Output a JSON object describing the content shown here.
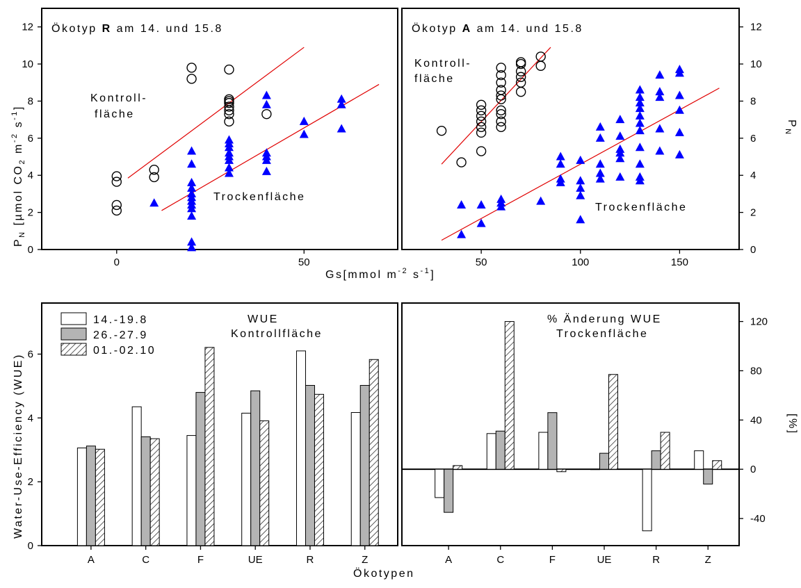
{
  "chart_data": [
    {
      "type": "scatter",
      "title": "Ökotyp R am 14. und 15.8",
      "title_prefix": "Ökotyp ",
      "title_bold": "R",
      "title_suffix": " am 14. und 15.8",
      "ylabel": "P",
      "ylabel_sub": "N",
      "ylabel_rest": " [µmol CO",
      "ylabel_sub2": "2",
      "ylabel_rest2": " m",
      "ylabel_sup1": "-2",
      "ylabel_rest3": " s",
      "ylabel_sup2": "-1",
      "ylabel_end": "]",
      "xlim": [
        -20,
        75
      ],
      "ylim": [
        0,
        13
      ],
      "xticks": [
        0,
        50
      ],
      "yticks": [
        0,
        2,
        4,
        6,
        8,
        10,
        12
      ],
      "annotations": [
        "Kontroll-",
        "fläche",
        "Trockenfläche"
      ],
      "series": [
        {
          "name": "Kontrollfläche",
          "marker": "circle",
          "points": [
            [
              0,
              2.1
            ],
            [
              0,
              2.4
            ],
            [
              0,
              3.65
            ],
            [
              0,
              3.95
            ],
            [
              10,
              3.9
            ],
            [
              10,
              4.3
            ],
            [
              20,
              9.2
            ],
            [
              20,
              9.8
            ],
            [
              30,
              6.9
            ],
            [
              30,
              7.3
            ],
            [
              30,
              7.5
            ],
            [
              30,
              7.7
            ],
            [
              30,
              7.9
            ],
            [
              30,
              8.0
            ],
            [
              30,
              8.1
            ],
            [
              30,
              9.7
            ],
            [
              40,
              7.3
            ]
          ],
          "fit": [
            [
              3,
              3.85
            ],
            [
              50,
              10.9
            ]
          ]
        },
        {
          "name": "Trockenfläche",
          "marker": "triangle",
          "points": [
            [
              10,
              2.5
            ],
            [
              20,
              0.1
            ],
            [
              20,
              0.4
            ],
            [
              20,
              1.8
            ],
            [
              20,
              2.2
            ],
            [
              20,
              2.4
            ],
            [
              20,
              2.6
            ],
            [
              20,
              2.8
            ],
            [
              20,
              3.0
            ],
            [
              20,
              3.3
            ],
            [
              20,
              3.6
            ],
            [
              20,
              4.6
            ],
            [
              20,
              5.3
            ],
            [
              30,
              4.1
            ],
            [
              30,
              4.4
            ],
            [
              30,
              4.8
            ],
            [
              30,
              5.0
            ],
            [
              30,
              5.2
            ],
            [
              30,
              5.5
            ],
            [
              30,
              5.7
            ],
            [
              30,
              5.9
            ],
            [
              40,
              4.2
            ],
            [
              40,
              4.8
            ],
            [
              40,
              5.0
            ],
            [
              40,
              5.2
            ],
            [
              40,
              7.8
            ],
            [
              40,
              8.3
            ],
            [
              50,
              6.2
            ],
            [
              50,
              6.9
            ],
            [
              60,
              6.5
            ],
            [
              60,
              7.8
            ],
            [
              60,
              8.1
            ]
          ],
          "fit": [
            [
              12,
              2.1
            ],
            [
              70,
              8.9
            ]
          ]
        }
      ]
    },
    {
      "type": "scatter",
      "title": "Ökotyp A am 14. und 15.8",
      "title_prefix": "Ökotyp ",
      "title_bold": "A",
      "title_suffix": " am 14. und 15.8",
      "ylabel": "P",
      "ylabel_sub": "N",
      "xlabel": "Gs[mmol m-2 s-1]",
      "xlabel_main": "Gs[mmol m",
      "xlabel_sup1": "-2",
      "xlabel_mid": " s",
      "xlabel_sup2": "-1",
      "xlabel_end": "]",
      "xlim": [
        10,
        180
      ],
      "ylim": [
        0,
        13
      ],
      "xticks": [
        50,
        100,
        150
      ],
      "yticks": [
        0,
        2,
        4,
        6,
        8,
        10,
        12
      ],
      "annotations": [
        "Kontroll-",
        "fläche",
        "Trockenfläche"
      ],
      "series": [
        {
          "name": "Kontrollfläche",
          "marker": "circle",
          "points": [
            [
              30,
              6.4
            ],
            [
              40,
              4.7
            ],
            [
              50,
              5.3
            ],
            [
              50,
              6.3
            ],
            [
              50,
              6.6
            ],
            [
              50,
              6.9
            ],
            [
              50,
              7.2
            ],
            [
              50,
              7.5
            ],
            [
              50,
              7.8
            ],
            [
              60,
              6.6
            ],
            [
              60,
              6.9
            ],
            [
              60,
              7.3
            ],
            [
              60,
              7.5
            ],
            [
              60,
              8.1
            ],
            [
              60,
              8.3
            ],
            [
              60,
              8.6
            ],
            [
              60,
              9.0
            ],
            [
              60,
              9.4
            ],
            [
              60,
              9.8
            ],
            [
              70,
              8.5
            ],
            [
              70,
              9.0
            ],
            [
              70,
              9.3
            ],
            [
              70,
              9.6
            ],
            [
              70,
              10.0
            ],
            [
              70,
              10.1
            ],
            [
              80,
              9.9
            ],
            [
              80,
              10.4
            ]
          ],
          "fit": [
            [
              30,
              4.6
            ],
            [
              85,
              10.9
            ]
          ]
        },
        {
          "name": "Trockenfläche",
          "marker": "triangle",
          "points": [
            [
              40,
              0.8
            ],
            [
              40,
              2.4
            ],
            [
              50,
              1.4
            ],
            [
              50,
              2.4
            ],
            [
              60,
              2.3
            ],
            [
              60,
              2.5
            ],
            [
              60,
              2.7
            ],
            [
              80,
              2.6
            ],
            [
              90,
              3.6
            ],
            [
              90,
              3.8
            ],
            [
              90,
              4.6
            ],
            [
              90,
              5.0
            ],
            [
              100,
              1.6
            ],
            [
              100,
              2.9
            ],
            [
              100,
              3.3
            ],
            [
              100,
              3.7
            ],
            [
              100,
              4.8
            ],
            [
              110,
              3.8
            ],
            [
              110,
              4.1
            ],
            [
              110,
              4.6
            ],
            [
              110,
              6.0
            ],
            [
              110,
              6.6
            ],
            [
              120,
              3.9
            ],
            [
              120,
              4.9
            ],
            [
              120,
              5.2
            ],
            [
              120,
              5.4
            ],
            [
              120,
              6.1
            ],
            [
              120,
              7.0
            ],
            [
              130,
              3.7
            ],
            [
              130,
              3.9
            ],
            [
              130,
              4.6
            ],
            [
              130,
              5.5
            ],
            [
              130,
              6.4
            ],
            [
              130,
              6.8
            ],
            [
              130,
              7.2
            ],
            [
              130,
              7.6
            ],
            [
              130,
              7.9
            ],
            [
              130,
              8.2
            ],
            [
              130,
              8.6
            ],
            [
              140,
              5.3
            ],
            [
              140,
              6.5
            ],
            [
              140,
              8.2
            ],
            [
              140,
              8.5
            ],
            [
              140,
              9.4
            ],
            [
              150,
              5.1
            ],
            [
              150,
              6.3
            ],
            [
              150,
              7.5
            ],
            [
              150,
              8.3
            ],
            [
              150,
              9.5
            ],
            [
              150,
              9.7
            ]
          ],
          "fit": [
            [
              30,
              0.5
            ],
            [
              170,
              8.7
            ]
          ]
        }
      ]
    },
    {
      "type": "bar",
      "ylabel": "Water-Use-Efficiency (WUE)",
      "annotation": [
        "WUE",
        "Kontrollfläche"
      ],
      "categories": [
        "A",
        "C",
        "F",
        "UE",
        "R",
        "Z"
      ],
      "ylim": [
        0,
        7.6
      ],
      "yticks": [
        0,
        2,
        4,
        6
      ],
      "series": [
        {
          "name": "14.-19.8",
          "fill": "#ffffff",
          "values": [
            3.06,
            4.35,
            3.45,
            4.15,
            6.1,
            4.17
          ]
        },
        {
          "name": "26.-27.9",
          "fill": "#b4b4b4",
          "values": [
            3.12,
            3.41,
            4.8,
            4.85,
            5.02,
            5.02
          ]
        },
        {
          "name": "01.-02.10",
          "fill": "hatch",
          "values": [
            3.02,
            3.35,
            6.21,
            3.91,
            4.74,
            5.83
          ]
        }
      ]
    },
    {
      "type": "bar",
      "ylabel": "[%]",
      "annotation": [
        "% Änderung WUE",
        "Trockenfläche"
      ],
      "categories": [
        "A",
        "C",
        "F",
        "UE",
        "R",
        "Z"
      ],
      "xlabel": "Ökotypen",
      "ylim": [
        -62,
        135
      ],
      "yticks": [
        -40,
        0,
        40,
        80,
        120
      ],
      "series": [
        {
          "name": "14.-19.8",
          "fill": "#ffffff",
          "values": [
            -23,
            29,
            30,
            0,
            -50,
            15
          ]
        },
        {
          "name": "26.-27.9",
          "fill": "#b4b4b4",
          "values": [
            -35,
            31,
            46,
            13,
            15,
            -12
          ]
        },
        {
          "name": "01.-02.10",
          "fill": "hatch",
          "values": [
            3,
            120,
            -2,
            77,
            30,
            7
          ]
        }
      ]
    }
  ],
  "colors": {
    "fit_line": "#e00000",
    "triangle": "#0000ff",
    "gray_bar": "#b4b4b4"
  }
}
